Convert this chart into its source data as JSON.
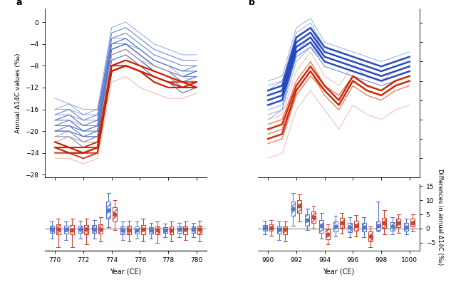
{
  "panel_a": {
    "years": [
      770,
      771,
      772,
      773,
      774,
      775,
      776,
      777,
      778,
      779,
      780
    ],
    "nh_thin_lines": [
      [
        -14,
        -15,
        -17,
        -16,
        -4,
        -4,
        -6,
        -8,
        -9,
        -10,
        -10
      ],
      [
        -16,
        -16,
        -18,
        -17,
        -3,
        -3,
        -5,
        -7,
        -8,
        -9,
        -8
      ],
      [
        -17,
        -17,
        -19,
        -19,
        -4,
        -4,
        -6,
        -8,
        -9,
        -11,
        -12
      ],
      [
        -18,
        -18,
        -20,
        -19,
        -5,
        -4,
        -6,
        -8,
        -9,
        -10,
        -9
      ],
      [
        -19,
        -19,
        -21,
        -20,
        -5,
        -4,
        -6,
        -8,
        -9,
        -11,
        -10
      ],
      [
        -20,
        -19,
        -21,
        -20,
        -5,
        -4,
        -5,
        -7,
        -8,
        -10,
        -9
      ],
      [
        -20,
        -20,
        -22,
        -21,
        -6,
        -5,
        -7,
        -9,
        -10,
        -12,
        -11
      ],
      [
        -19,
        -18,
        -20,
        -19,
        -4,
        -3,
        -5,
        -7,
        -8,
        -9,
        -9
      ],
      [
        -18,
        -17,
        -19,
        -18,
        -3,
        -2,
        -4,
        -6,
        -7,
        -8,
        -8
      ],
      [
        -21,
        -21,
        -23,
        -22,
        -7,
        -6,
        -8,
        -10,
        -11,
        -13,
        -12
      ],
      [
        -17,
        -16,
        -18,
        -17,
        -2,
        -1,
        -3,
        -5,
        -6,
        -7,
        -7
      ],
      [
        -20,
        -20,
        -21,
        -21,
        -6,
        -5,
        -7,
        -9,
        -10,
        -11,
        -10
      ],
      [
        -19,
        -19,
        -20,
        -19,
        -5,
        -4,
        -6,
        -8,
        -9,
        -10,
        -9
      ],
      [
        -18,
        -17,
        -18,
        -18,
        -3,
        -2,
        -4,
        -6,
        -7,
        -8,
        -8
      ],
      [
        -21,
        -20,
        -22,
        -21,
        -6,
        -5,
        -7,
        -9,
        -10,
        -12,
        -11
      ],
      [
        -16,
        -15,
        -16,
        -16,
        -1,
        0,
        -2,
        -4,
        -5,
        -6,
        -6
      ],
      [
        -22,
        -21,
        -23,
        -22,
        -7,
        -6,
        -8,
        -10,
        -11,
        -13,
        -12
      ],
      [
        -19,
        -19,
        -20,
        -20,
        -5,
        -4,
        -6,
        -8,
        -9,
        -10,
        -9
      ],
      [
        -20,
        -20,
        -21,
        -21,
        -5,
        -4,
        -6,
        -8,
        -9,
        -11,
        -10
      ],
      [
        -18,
        -18,
        -19,
        -19,
        -4,
        -3,
        -5,
        -7,
        -8,
        -9,
        -8
      ],
      [
        -17,
        -16,
        -17,
        -17,
        -2,
        -1,
        -3,
        -5,
        -6,
        -7,
        -7
      ],
      [
        -19,
        -19,
        -20,
        -20,
        -5,
        -4,
        -6,
        -8,
        -9,
        -10,
        -10
      ],
      [
        -20,
        -19,
        -21,
        -20,
        -6,
        -5,
        -7,
        -9,
        -10,
        -11,
        -11
      ],
      [
        -21,
        -21,
        -22,
        -22,
        -7,
        -6,
        -8,
        -10,
        -11,
        -13,
        -12
      ],
      [
        -18,
        -17,
        -19,
        -18,
        -4,
        -3,
        -5,
        -7,
        -8,
        -9,
        -9
      ],
      [
        -19,
        -18,
        -20,
        -19,
        -5,
        -4,
        -6,
        -8,
        -9,
        -10,
        -9
      ],
      [
        -20,
        -20,
        -21,
        -21,
        -6,
        -5,
        -7,
        -9,
        -10,
        -11,
        -10
      ]
    ],
    "sh_bold_lines": [
      [
        -22,
        -23,
        -24,
        -23,
        -9,
        -8,
        -9,
        -10,
        -11,
        -11,
        -12
      ],
      [
        -23,
        -23,
        -24,
        -24,
        -8,
        -7,
        -8,
        -9,
        -10,
        -11,
        -11
      ],
      [
        -23,
        -24,
        -24,
        -23,
        -9,
        -8,
        -9,
        -11,
        -12,
        -12,
        -11
      ],
      [
        -23,
        -23,
        -23,
        -23,
        -8,
        -8,
        -9,
        -10,
        -11,
        -12,
        -12
      ],
      [
        -22,
        -23,
        -23,
        -22,
        -8,
        -7,
        -8,
        -9,
        -10,
        -11,
        -12
      ],
      [
        -24,
        -24,
        -25,
        -24,
        -9,
        -8,
        -9,
        -11,
        -12,
        -12,
        -12
      ],
      [
        -23,
        -24,
        -24,
        -23,
        -9,
        -8,
        -9,
        -10,
        -11,
        -12,
        -11
      ]
    ],
    "sh_light_lines": [
      [
        -25,
        -25,
        -26,
        -25,
        -11,
        -10,
        -12,
        -13,
        -14,
        -14,
        -13
      ],
      [
        -21,
        -21,
        -22,
        -22,
        -6,
        -5,
        -7,
        -8,
        -9,
        -10,
        -11
      ]
    ],
    "bot_blue_boxes": [
      {
        "year": 770,
        "median": -0.3,
        "q1": -1.5,
        "q3": 1.0,
        "lo": -3.5,
        "hi": 2.5
      },
      {
        "year": 771,
        "median": -0.3,
        "q1": -1.8,
        "q3": 1.0,
        "lo": -4.0,
        "hi": 2.5
      },
      {
        "year": 772,
        "median": -0.3,
        "q1": -1.5,
        "q3": 1.0,
        "lo": -3.5,
        "hi": 2.8
      },
      {
        "year": 773,
        "median": -0.3,
        "q1": -1.5,
        "q3": 1.2,
        "lo": -3.5,
        "hi": 3.0
      },
      {
        "year": 774,
        "median": 6.5,
        "q1": 3.5,
        "q3": 9.5,
        "lo": 0.5,
        "hi": 12.5
      },
      {
        "year": 775,
        "median": -0.5,
        "q1": -2.0,
        "q3": 0.8,
        "lo": -4.0,
        "hi": 2.5
      },
      {
        "year": 776,
        "median": -0.5,
        "q1": -1.8,
        "q3": 0.8,
        "lo": -3.5,
        "hi": 2.5
      },
      {
        "year": 777,
        "median": -0.5,
        "q1": -1.8,
        "q3": 0.5,
        "lo": -3.5,
        "hi": 2.0
      },
      {
        "year": 778,
        "median": -0.5,
        "q1": -1.5,
        "q3": 0.5,
        "lo": -3.0,
        "hi": 1.8
      },
      {
        "year": 779,
        "median": -0.3,
        "q1": -1.5,
        "q3": 0.8,
        "lo": -3.0,
        "hi": 2.0
      },
      {
        "year": 780,
        "median": -0.3,
        "q1": -1.5,
        "q3": 0.8,
        "lo": -3.0,
        "hi": 2.0
      }
    ],
    "bot_red_boxes": [
      {
        "year": 770,
        "median": -0.3,
        "q1": -2.0,
        "q3": 1.5,
        "lo": -6.5,
        "hi": 3.5
      },
      {
        "year": 771,
        "median": -0.5,
        "q1": -2.2,
        "q3": 1.2,
        "lo": -6.5,
        "hi": 3.5
      },
      {
        "year": 772,
        "median": -0.3,
        "q1": -2.0,
        "q3": 1.2,
        "lo": -5.5,
        "hi": 3.5
      },
      {
        "year": 773,
        "median": -0.3,
        "q1": -1.8,
        "q3": 1.5,
        "lo": -4.5,
        "hi": 4.0
      },
      {
        "year": 774,
        "median": 5.0,
        "q1": 2.5,
        "q3": 7.5,
        "lo": -0.5,
        "hi": 10.0
      },
      {
        "year": 775,
        "median": -0.5,
        "q1": -2.2,
        "q3": 1.0,
        "lo": -4.5,
        "hi": 2.8
      },
      {
        "year": 776,
        "median": -0.3,
        "q1": -2.0,
        "q3": 1.2,
        "lo": -4.5,
        "hi": 3.5
      },
      {
        "year": 777,
        "median": -0.5,
        "q1": -2.2,
        "q3": 0.8,
        "lo": -5.0,
        "hi": 2.5
      },
      {
        "year": 778,
        "median": -0.5,
        "q1": -2.0,
        "q3": 0.8,
        "lo": -4.5,
        "hi": 2.5
      },
      {
        "year": 779,
        "median": -0.3,
        "q1": -2.0,
        "q3": 0.8,
        "lo": -4.0,
        "hi": 2.5
      },
      {
        "year": 780,
        "median": -0.3,
        "q1": -2.0,
        "q3": 1.0,
        "lo": -4.5,
        "hi": 2.8
      }
    ]
  },
  "panel_b": {
    "years": [
      990,
      991,
      992,
      993,
      994,
      995,
      996,
      997,
      998,
      999,
      1000
    ],
    "nh_thin_lines": [
      [
        -14.5,
        -14.0,
        -9.5,
        -8.5,
        -10.0,
        -10.5,
        -11.0,
        -11.5,
        -12.0,
        -11.5,
        -11.0
      ],
      [
        -13.0,
        -12.5,
        -8.0,
        -7.0,
        -9.0,
        -9.5,
        -10.0,
        -10.5,
        -11.0,
        -10.5,
        -10.0
      ],
      [
        -15.0,
        -14.5,
        -9.5,
        -8.5,
        -10.5,
        -11.0,
        -11.5,
        -12.0,
        -12.5,
        -12.0,
        -11.5
      ],
      [
        -13.5,
        -13.0,
        -8.5,
        -7.5,
        -9.5,
        -10.0,
        -10.5,
        -11.0,
        -11.5,
        -11.0,
        -10.5
      ],
      [
        -12.0,
        -11.5,
        -6.5,
        -5.5,
        -8.0,
        -8.5,
        -9.0,
        -9.5,
        -10.0,
        -9.5,
        -9.0
      ],
      [
        -15.5,
        -15.0,
        -10.0,
        -8.5,
        -10.5,
        -11.0,
        -11.5,
        -12.0,
        -12.5,
        -12.0,
        -11.5
      ],
      [
        -14.0,
        -13.5,
        -8.0,
        -7.0,
        -9.5,
        -10.0,
        -10.5,
        -11.0,
        -11.5,
        -11.0,
        -10.5
      ],
      [
        -13.0,
        -12.0,
        -7.0,
        -6.0,
        -8.5,
        -9.0,
        -9.5,
        -10.0,
        -10.5,
        -10.0,
        -9.5
      ],
      [
        -16.0,
        -15.0,
        -9.0,
        -7.5,
        -10.0,
        -10.5,
        -11.0,
        -11.5,
        -12.0,
        -11.5,
        -11.0
      ],
      [
        -12.5,
        -12.0,
        -7.5,
        -6.5,
        -9.0,
        -9.5,
        -10.0,
        -10.5,
        -11.0,
        -10.5,
        -10.0
      ]
    ],
    "nh_bold_lines": [
      [
        -13.5,
        -13.0,
        -8.0,
        -7.0,
        -9.0,
        -9.5,
        -10.0,
        -10.5,
        -11.0,
        -10.5,
        -10.0
      ],
      [
        -14.0,
        -13.5,
        -8.5,
        -7.5,
        -9.5,
        -10.0,
        -10.5,
        -11.0,
        -11.5,
        -11.0,
        -10.5
      ],
      [
        -13.0,
        -12.5,
        -7.5,
        -6.5,
        -8.5,
        -9.0,
        -9.5,
        -10.0,
        -10.5,
        -10.0,
        -9.5
      ],
      [
        -14.5,
        -14.0,
        -9.0,
        -8.0,
        -10.0,
        -10.5,
        -11.0,
        -11.5,
        -12.0,
        -11.5,
        -11.0
      ]
    ],
    "sh_thin_lines": [
      [
        -17.5,
        -17.0,
        -13.0,
        -11.0,
        -13.5,
        -15.0,
        -12.5,
        -13.5,
        -14.0,
        -13.0,
        -12.5
      ],
      [
        -18.5,
        -18.0,
        -13.5,
        -11.5,
        -13.0,
        -14.5,
        -12.0,
        -13.0,
        -13.5,
        -12.5,
        -12.0
      ],
      [
        -16.5,
        -16.0,
        -12.0,
        -10.0,
        -12.5,
        -13.5,
        -11.5,
        -12.5,
        -13.0,
        -12.0,
        -11.5
      ]
    ],
    "sh_bold_lines": [
      [
        -17.0,
        -16.5,
        -12.5,
        -10.5,
        -12.5,
        -14.0,
        -11.5,
        -12.5,
        -13.0,
        -12.0,
        -11.5
      ],
      [
        -18.0,
        -17.5,
        -13.0,
        -11.0,
        -13.0,
        -14.5,
        -12.0,
        -13.0,
        -13.5,
        -12.5,
        -12.0
      ]
    ],
    "sh_light_lines": [
      [
        -20.0,
        -19.5,
        -15.0,
        -13.0,
        -15.0,
        -17.0,
        -14.5,
        -15.5,
        -16.0,
        -15.0,
        -14.5
      ],
      [
        -16.0,
        -15.5,
        -11.0,
        -9.0,
        -11.5,
        -12.5,
        -10.5,
        -11.5,
        -12.0,
        -11.0,
        -10.5
      ]
    ],
    "bot_blue_boxes": [
      {
        "year": 990,
        "median": 0.2,
        "q1": -0.8,
        "q3": 1.2,
        "lo": -2.0,
        "hi": 2.8
      },
      {
        "year": 991,
        "median": -0.3,
        "q1": -1.8,
        "q3": 0.8,
        "lo": -4.0,
        "hi": 2.5
      },
      {
        "year": 992,
        "median": 7.0,
        "q1": 4.5,
        "q3": 9.5,
        "lo": 1.0,
        "hi": 12.5
      },
      {
        "year": 993,
        "median": 3.0,
        "q1": 1.0,
        "q3": 5.0,
        "lo": -0.5,
        "hi": 7.0
      },
      {
        "year": 994,
        "median": 1.0,
        "q1": -1.5,
        "q3": 3.0,
        "lo": -3.5,
        "hi": 5.5
      },
      {
        "year": 995,
        "median": 0.8,
        "q1": -1.0,
        "q3": 2.5,
        "lo": -2.8,
        "hi": 4.5
      },
      {
        "year": 996,
        "median": 0.5,
        "q1": -1.2,
        "q3": 2.0,
        "lo": -3.0,
        "hi": 4.0
      },
      {
        "year": 997,
        "median": 0.5,
        "q1": -1.0,
        "q3": 2.0,
        "lo": -3.0,
        "hi": 4.0
      },
      {
        "year": 998,
        "median": 1.0,
        "q1": -0.5,
        "q3": 2.5,
        "lo": -1.0,
        "hi": 9.5
      },
      {
        "year": 999,
        "median": 0.8,
        "q1": -0.8,
        "q3": 2.2,
        "lo": -2.0,
        "hi": 4.0
      },
      {
        "year": 1000,
        "median": 0.5,
        "q1": -0.8,
        "q3": 2.0,
        "lo": -2.0,
        "hi": 3.5
      }
    ],
    "bot_red_boxes": [
      {
        "year": 990,
        "median": 0.3,
        "q1": -0.8,
        "q3": 1.5,
        "lo": -2.5,
        "hi": 3.0
      },
      {
        "year": 991,
        "median": -0.3,
        "q1": -2.0,
        "q3": 0.8,
        "lo": -4.5,
        "hi": 2.5
      },
      {
        "year": 992,
        "median": 8.0,
        "q1": 5.5,
        "q3": 10.0,
        "lo": 2.5,
        "hi": 12.0
      },
      {
        "year": 993,
        "median": 4.0,
        "q1": 2.0,
        "q3": 6.0,
        "lo": 0.0,
        "hi": 8.0
      },
      {
        "year": 994,
        "median": -2.0,
        "q1": -3.8,
        "q3": -0.2,
        "lo": -5.5,
        "hi": 1.5
      },
      {
        "year": 995,
        "median": 2.0,
        "q1": 0.2,
        "q3": 3.8,
        "lo": -1.8,
        "hi": 5.5
      },
      {
        "year": 996,
        "median": 1.0,
        "q1": -0.8,
        "q3": 2.8,
        "lo": -2.8,
        "hi": 4.8
      },
      {
        "year": 997,
        "median": -2.8,
        "q1": -4.5,
        "q3": -1.0,
        "lo": -6.5,
        "hi": 0.8
      },
      {
        "year": 998,
        "median": 2.0,
        "q1": 0.2,
        "q3": 3.8,
        "lo": -2.0,
        "hi": 6.5
      },
      {
        "year": 999,
        "median": 2.0,
        "q1": 0.5,
        "q3": 3.5,
        "lo": -1.5,
        "hi": 5.0
      },
      {
        "year": 1000,
        "median": 2.0,
        "q1": 0.8,
        "q3": 3.5,
        "lo": -1.0,
        "hi": 5.0
      }
    ]
  },
  "colors": {
    "nh_blue_bold": "#2244bb",
    "nh_blue_thin": "#5577cc",
    "sh_red_bold": "#cc2200",
    "sh_red_thin": "#dd5533",
    "sh_red_light": "#eeaa99",
    "box_blue": "#5577cc",
    "box_red": "#cc4433",
    "zero_line": "#888888"
  }
}
